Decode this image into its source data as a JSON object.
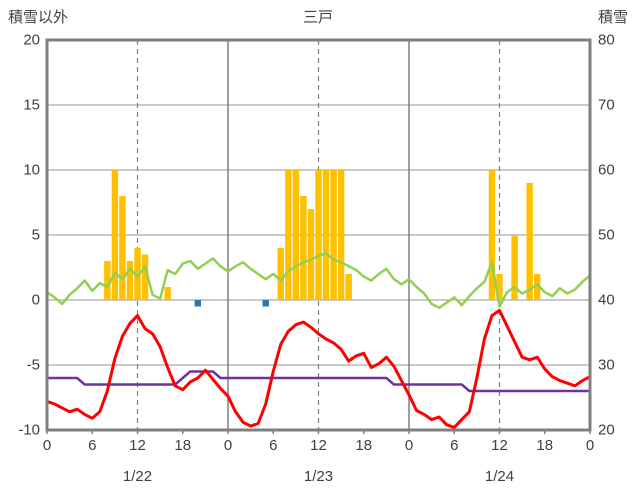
{
  "header": {
    "left_label": "積雪以外",
    "title": "三戸",
    "right_label": "積雪"
  },
  "chart_data": {
    "type": "combo",
    "title": "三戸",
    "left_axis": {
      "label": "積雪以外",
      "min": -10,
      "max": 20,
      "ticks": [
        20,
        15,
        10,
        5,
        0,
        -5,
        -10
      ]
    },
    "right_axis": {
      "label": "積雪",
      "min": 20,
      "max": 80,
      "ticks": [
        80,
        70,
        60,
        50,
        40,
        30,
        20
      ]
    },
    "x_axis": {
      "hours_total": 72,
      "tick_interval": 6,
      "tick_labels": [
        "0",
        "6",
        "12",
        "18",
        "0",
        "6",
        "12",
        "18",
        "0",
        "6",
        "12",
        "18",
        "0"
      ],
      "day_labels": [
        "1/22",
        "1/23",
        "1/24"
      ],
      "day_label_hours": [
        12,
        36,
        60
      ],
      "solid_lines": [
        24,
        48
      ],
      "dashed_lines": [
        12,
        36,
        60
      ]
    },
    "colors": {
      "grid": "#ABABAB",
      "day_line": "#808080",
      "border": "#7F7F7F",
      "text": "#404040",
      "orange": "#FFC000",
      "green": "#92D050",
      "red": "#FF0000",
      "purple": "#7030A0",
      "blue": "#2E75B6"
    },
    "series": [
      {
        "name": "orange-bars",
        "type": "bar",
        "axis": "left",
        "color": "#FFC000",
        "points": [
          [
            8,
            3
          ],
          [
            9,
            10
          ],
          [
            10,
            8
          ],
          [
            11,
            3
          ],
          [
            12,
            4
          ],
          [
            13,
            3.5
          ],
          [
            16,
            1
          ],
          [
            31,
            4
          ],
          [
            32,
            10
          ],
          [
            33,
            10
          ],
          [
            34,
            8
          ],
          [
            35,
            7
          ],
          [
            36,
            10
          ],
          [
            37,
            10
          ],
          [
            38,
            10
          ],
          [
            39,
            10
          ],
          [
            40,
            2
          ],
          [
            59,
            10
          ],
          [
            60,
            2
          ],
          [
            62,
            5
          ],
          [
            64,
            9
          ],
          [
            65,
            2
          ]
        ]
      },
      {
        "name": "blue-marks",
        "type": "bar",
        "axis": "left",
        "color": "#2E75B6",
        "points": [
          [
            20,
            -0.5
          ],
          [
            29,
            -0.5
          ]
        ]
      },
      {
        "name": "green-line",
        "type": "line",
        "axis": "left",
        "color": "#92D050",
        "width": 2.5,
        "values": [
          0.6,
          0.2,
          -0.3,
          0.4,
          0.9,
          1.5,
          0.7,
          1.3,
          1.0,
          2.1,
          1.6,
          2.4,
          1.8,
          2.6,
          0.4,
          0.1,
          2.3,
          2.0,
          2.8,
          3.0,
          2.4,
          2.8,
          3.2,
          2.6,
          2.2,
          2.6,
          2.9,
          2.4,
          2.0,
          1.6,
          2.0,
          1.5,
          2.2,
          2.6,
          2.9,
          3.1,
          3.4,
          3.6,
          3.1,
          2.9,
          2.6,
          2.3,
          1.8,
          1.5,
          2.0,
          2.4,
          1.6,
          1.2,
          1.6,
          1.0,
          0.5,
          -0.3,
          -0.6,
          -0.2,
          0.2,
          -0.4,
          0.3,
          0.9,
          1.4,
          2.9,
          -0.5,
          0.6,
          1.0,
          0.5,
          0.8,
          1.2,
          0.6,
          0.3,
          0.9,
          0.5,
          0.8,
          1.4,
          1.9
        ]
      },
      {
        "name": "purple-line",
        "type": "line",
        "axis": "right",
        "color": "#7030A0",
        "width": 2.5,
        "values": [
          28,
          28,
          28,
          28,
          28,
          27,
          27,
          27,
          27,
          27,
          27,
          27,
          27,
          27,
          27,
          27,
          27,
          27,
          28,
          29,
          29,
          29,
          29,
          28,
          28,
          28,
          28,
          28,
          28,
          28,
          28,
          28,
          28,
          28,
          28,
          28,
          28,
          28,
          28,
          28,
          28,
          28,
          28,
          28,
          28,
          28,
          27,
          27,
          27,
          27,
          27,
          27,
          27,
          27,
          27,
          27,
          26,
          26,
          26,
          26,
          26,
          26,
          26,
          26,
          26,
          26,
          26,
          26,
          26,
          26,
          26,
          26,
          26
        ]
      },
      {
        "name": "red-line",
        "type": "line",
        "axis": "left",
        "color": "#FF0000",
        "width": 3,
        "values": [
          -7.8,
          -8.0,
          -8.3,
          -8.6,
          -8.4,
          -8.8,
          -9.1,
          -8.6,
          -7.0,
          -4.5,
          -2.8,
          -1.8,
          -1.2,
          -2.2,
          -2.6,
          -3.6,
          -5.2,
          -6.6,
          -6.9,
          -6.3,
          -6.0,
          -5.4,
          -6.1,
          -6.8,
          -7.4,
          -8.6,
          -9.4,
          -9.7,
          -9.5,
          -8.0,
          -5.5,
          -3.4,
          -2.4,
          -1.9,
          -1.7,
          -2.1,
          -2.6,
          -3.0,
          -3.3,
          -3.8,
          -4.7,
          -4.3,
          -4.1,
          -5.2,
          -4.9,
          -4.4,
          -5.1,
          -6.2,
          -7.3,
          -8.5,
          -8.8,
          -9.2,
          -9.0,
          -9.6,
          -9.8,
          -9.2,
          -8.6,
          -6.0,
          -3.0,
          -1.2,
          -0.8,
          -2.0,
          -3.2,
          -4.4,
          -4.6,
          -4.4,
          -5.3,
          -5.9,
          -6.2,
          -6.4,
          -6.6,
          -6.2,
          -5.9
        ]
      }
    ]
  }
}
